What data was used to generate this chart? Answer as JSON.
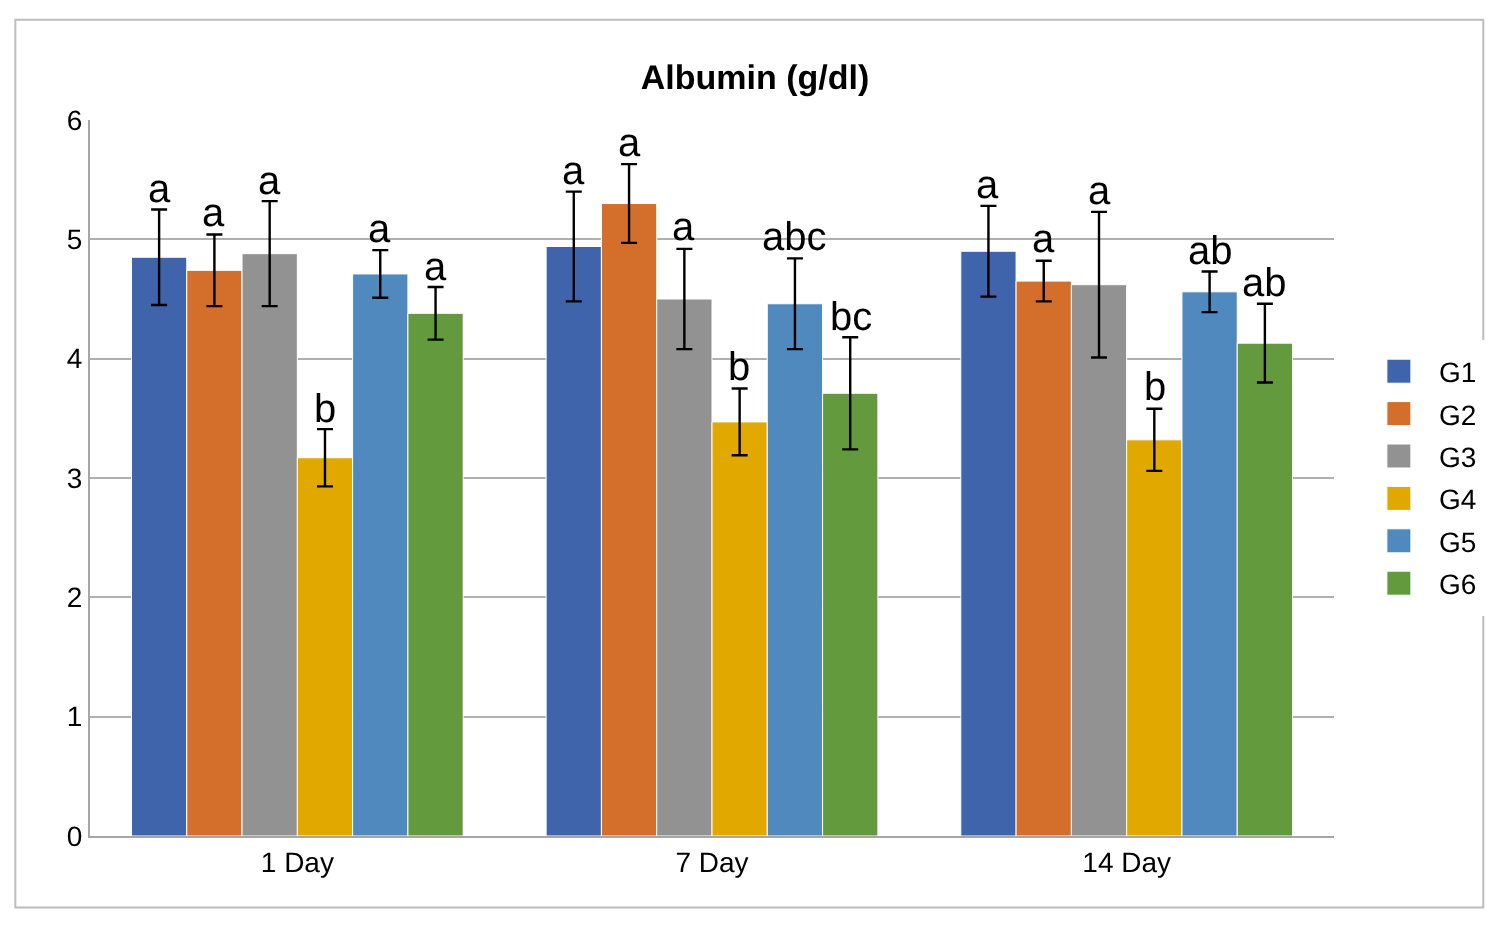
{
  "chart_data": {
    "type": "bar",
    "title": "Albumin (g/dl)",
    "categories": [
      "1 Day",
      "7 Day",
      "14 Day"
    ],
    "series": [
      {
        "name": "G1",
        "color": "#3f64ac",
        "values": [
          4.85,
          4.94,
          4.9
        ],
        "errors": [
          0.4,
          0.46,
          0.38
        ],
        "value_labels": [
          "a",
          "a",
          "a"
        ]
      },
      {
        "name": "G2",
        "color": "#d36f2b",
        "values": [
          4.74,
          5.3,
          4.65
        ],
        "errors": [
          0.3,
          0.33,
          0.17
        ],
        "value_labels": [
          "a",
          "a",
          "a"
        ]
      },
      {
        "name": "G3",
        "color": "#929292",
        "values": [
          4.88,
          4.5,
          4.62
        ],
        "errors": [
          0.44,
          0.42,
          0.61
        ],
        "value_labels": [
          "a",
          "a",
          "a"
        ]
      },
      {
        "name": "G4",
        "color": "#e1a900",
        "values": [
          3.17,
          3.47,
          3.32
        ],
        "errors": [
          0.24,
          0.28,
          0.26
        ],
        "value_labels": [
          "b",
          "b",
          "b"
        ]
      },
      {
        "name": "G5",
        "color": "#4f89be",
        "values": [
          4.71,
          4.46,
          4.56
        ],
        "errors": [
          0.2,
          0.38,
          0.17
        ],
        "value_labels": [
          "a",
          "abc",
          "ab"
        ]
      },
      {
        "name": "G6",
        "color": "#649a3e",
        "values": [
          4.38,
          3.71,
          4.13
        ],
        "errors": [
          0.22,
          0.47,
          0.33
        ],
        "value_labels": [
          "a",
          "bc",
          "ab"
        ]
      }
    ],
    "ylim": [
      0,
      6
    ],
    "yticks": [
      0,
      1,
      2,
      3,
      4,
      5,
      6
    ],
    "grid": "y",
    "legend": "right"
  }
}
